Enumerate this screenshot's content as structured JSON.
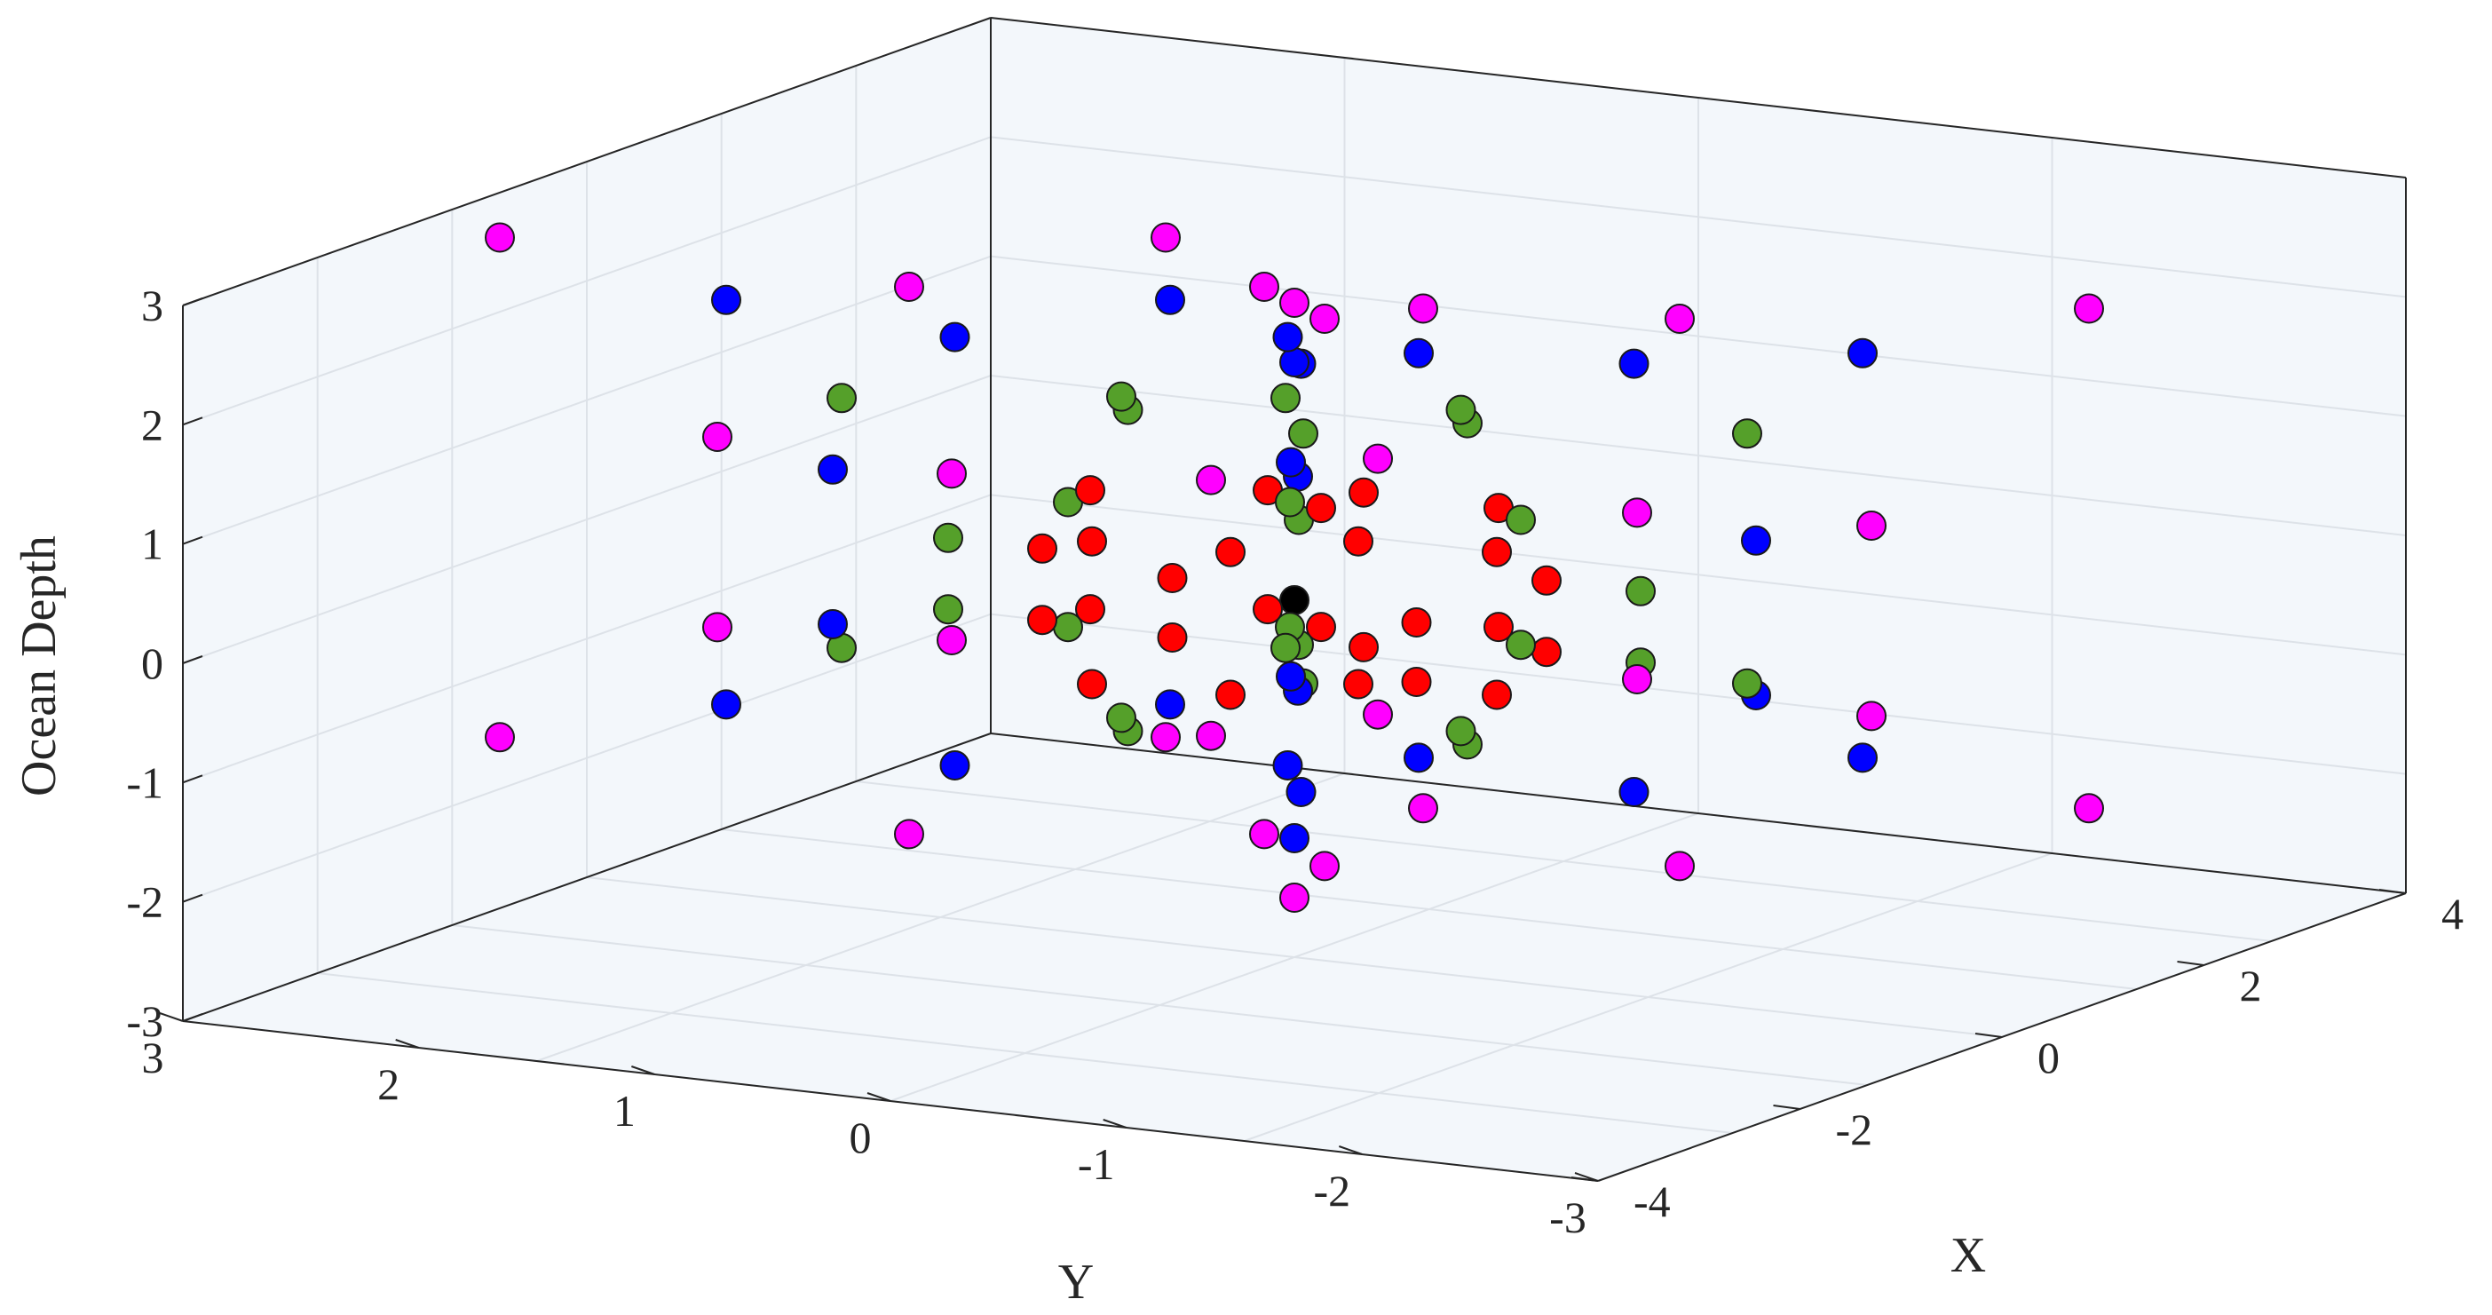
{
  "chart_data": {
    "type": "scatter3d",
    "title": "",
    "xlabel": "X",
    "ylabel": "Y",
    "zlabel": "Ocean Depth",
    "xlim": [
      -4,
      4
    ],
    "ylim": [
      -3,
      3
    ],
    "zlim": [
      -3,
      3
    ],
    "xticks": [
      "-4",
      "-2",
      "0",
      "2",
      "4"
    ],
    "yticks": [
      "3",
      "2",
      "1",
      "0",
      "-1",
      "-2",
      "-3"
    ],
    "zticks": [
      "3",
      "2",
      "1",
      "0",
      "-1",
      "-2",
      "-3"
    ],
    "grid": true,
    "background": "#f3f7fb",
    "series": [
      {
        "color": "#000000",
        "points": [
          [
            0,
            0,
            0
          ]
        ]
      },
      {
        "color": "#ff0000",
        "points": [
          [
            0.6,
            0.0,
            0.95
          ],
          [
            0.6,
            0.0,
            -0.35
          ],
          [
            1.0,
            0.8,
            0.85
          ],
          [
            1.0,
            0.8,
            -0.15
          ],
          [
            1.0,
            -0.8,
            0.85
          ],
          [
            1.0,
            -0.8,
            -0.15
          ],
          [
            -1.0,
            0.8,
            0.85
          ],
          [
            -1.0,
            0.8,
            -0.15
          ],
          [
            -1.0,
            -0.8,
            0.85
          ],
          [
            -1.0,
            -0.8,
            -0.15
          ],
          [
            -0.6,
            1.2,
            0.45
          ],
          [
            -0.6,
            1.2,
            -0.75
          ],
          [
            0.6,
            1.2,
            0.45
          ],
          [
            0.6,
            1.2,
            -0.75
          ],
          [
            -0.6,
            -1.2,
            0.45
          ],
          [
            -0.6,
            -1.2,
            -0.75
          ],
          [
            0.6,
            -1.2,
            0.45
          ],
          [
            0.6,
            -1.2,
            -0.75
          ],
          [
            2.5,
            1.5,
            0.0
          ],
          [
            2.5,
            1.5,
            -0.5
          ],
          [
            -2.5,
            -1.5,
            0.0
          ],
          [
            -2.5,
            -1.5,
            -0.5
          ],
          [
            1.8,
            -0.4,
            0.3
          ],
          [
            1.8,
            -0.4,
            -0.3
          ],
          [
            -1.8,
            0.4,
            0.3
          ],
          [
            -1.8,
            0.4,
            -0.3
          ]
        ]
      },
      {
        "color": "#55a02a",
        "points": [
          [
            2.0,
            2.0,
            1.55
          ],
          [
            2.0,
            2.0,
            -0.55
          ],
          [
            2.0,
            -2.0,
            1.55
          ],
          [
            2.0,
            -2.0,
            -0.55
          ],
          [
            -2.0,
            2.0,
            1.55
          ],
          [
            -2.0,
            2.0,
            -0.55
          ],
          [
            -2.0,
            -2.0,
            1.55
          ],
          [
            -2.0,
            -2.0,
            -0.55
          ],
          [
            1.5,
            0.0,
            1.6
          ],
          [
            1.5,
            0.0,
            -1.1
          ],
          [
            -1.5,
            0.0,
            1.6
          ],
          [
            -1.5,
            0.0,
            -1.1
          ],
          [
            0.0,
            1.5,
            1.6
          ],
          [
            0.0,
            1.5,
            -1.1
          ],
          [
            0.0,
            -1.5,
            1.6
          ],
          [
            0.0,
            -1.5,
            -1.1
          ],
          [
            1.0,
            1.0,
            0.75
          ],
          [
            1.0,
            1.0,
            -0.3
          ],
          [
            -1.0,
            -1.0,
            0.75
          ],
          [
            -1.0,
            -1.0,
            -0.3
          ],
          [
            1.0,
            -1.0,
            0.75
          ],
          [
            1.0,
            -1.0,
            -0.3
          ],
          [
            -1.0,
            1.0,
            0.75
          ],
          [
            -1.0,
            1.0,
            -0.3
          ],
          [
            3.0,
            0.0,
            0.3
          ],
          [
            3.0,
            0.0,
            -0.3
          ],
          [
            -3.0,
            0.0,
            0.3
          ],
          [
            -3.0,
            0.0,
            -0.3
          ]
        ]
      },
      {
        "color": "#0000ff",
        "points": [
          [
            3.0,
            2.0,
            2.3
          ],
          [
            3.0,
            2.0,
            -1.1
          ],
          [
            -3.0,
            -2.0,
            2.3
          ],
          [
            -3.0,
            -2.0,
            -1.1
          ],
          [
            3.0,
            -2.0,
            2.3
          ],
          [
            3.0,
            -2.0,
            -1.1
          ],
          [
            -3.0,
            2.0,
            2.3
          ],
          [
            -3.0,
            2.0,
            -1.1
          ],
          [
            1.5,
            1.5,
            2.1
          ],
          [
            1.5,
            1.5,
            -1.5
          ],
          [
            -1.5,
            -1.5,
            2.1
          ],
          [
            -1.5,
            -1.5,
            -1.5
          ],
          [
            1.5,
            -1.5,
            2.1
          ],
          [
            1.5,
            -1.5,
            -1.5
          ],
          [
            -1.5,
            1.5,
            2.1
          ],
          [
            -1.5,
            1.5,
            -1.5
          ],
          [
            0.0,
            0.0,
            2.0
          ],
          [
            0.0,
            0.0,
            -2.0
          ],
          [
            4.0,
            0.0,
            0.8
          ],
          [
            4.0,
            0.0,
            -0.5
          ],
          [
            -4.0,
            0.0,
            0.8
          ],
          [
            -4.0,
            0.0,
            -0.5
          ],
          [
            0.8,
            0.8,
            1.1
          ],
          [
            0.8,
            0.8,
            -0.7
          ],
          [
            -0.8,
            -0.8,
            1.1
          ],
          [
            -0.8,
            -0.8,
            -0.7
          ]
        ]
      },
      {
        "color": "#ff00ff",
        "points": [
          [
            4.0,
            3.0,
            2.75
          ],
          [
            4.0,
            3.0,
            -1.45
          ],
          [
            -4.0,
            -3.0,
            2.75
          ],
          [
            -4.0,
            -3.0,
            -1.45
          ],
          [
            4.0,
            -3.0,
            2.75
          ],
          [
            4.0,
            -3.0,
            -1.45
          ],
          [
            -4.0,
            3.0,
            2.75
          ],
          [
            -4.0,
            3.0,
            -1.45
          ],
          [
            1.8,
            1.6,
            2.5
          ],
          [
            1.8,
            1.6,
            -2.1
          ],
          [
            -1.8,
            -1.6,
            2.5
          ],
          [
            -1.8,
            -1.6,
            -2.1
          ],
          [
            1.8,
            -1.6,
            2.5
          ],
          [
            1.8,
            -1.6,
            -2.1
          ],
          [
            -1.8,
            1.6,
            2.5
          ],
          [
            -1.8,
            1.6,
            -2.1
          ],
          [
            0.0,
            0.0,
            2.5
          ],
          [
            0.0,
            0.0,
            -2.5
          ],
          [
            5.0,
            0.0,
            1.0
          ],
          [
            5.0,
            0.0,
            -0.6
          ],
          [
            -5.0,
            0.0,
            1.0
          ],
          [
            -5.0,
            0.0,
            -0.6
          ],
          [
            1.2,
            2.0,
            1.1
          ],
          [
            1.2,
            2.0,
            -1.05
          ],
          [
            -1.2,
            -2.0,
            1.1
          ],
          [
            -1.2,
            -2.0,
            -1.05
          ],
          [
            2.2,
            -0.8,
            0.9
          ],
          [
            2.2,
            -0.8,
            -0.5
          ],
          [
            -2.2,
            0.8,
            0.9
          ],
          [
            -2.2,
            0.8,
            -0.5
          ]
        ]
      }
    ]
  }
}
